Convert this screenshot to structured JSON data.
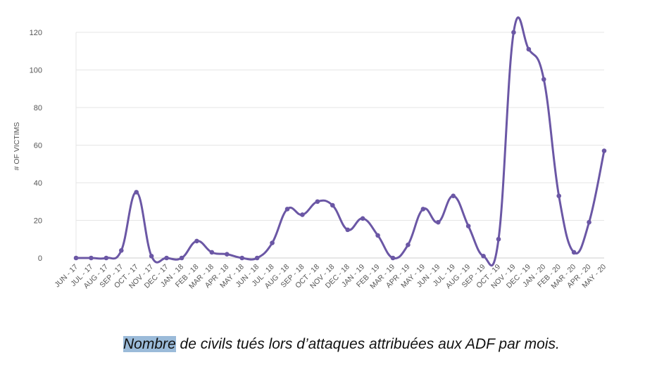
{
  "chart_data": {
    "type": "line",
    "ylabel": "# OF VICTIMS",
    "xlabel": "",
    "ylim": [
      0,
      120
    ],
    "yticks": [
      0,
      20,
      40,
      60,
      80,
      100,
      120
    ],
    "grid": true,
    "legend": "none",
    "line_color": "#6b57a5",
    "categories": [
      "JUN - 17",
      "JUL - 17",
      "AUG - 17",
      "SEP - 17",
      "OCT - 17",
      "NOV - 17",
      "DEC - 17",
      "JAN - 18",
      "FEB - 18",
      "MAR - 18",
      "APR - 18",
      "MAY - 18",
      "JUN - 18",
      "JUL - 18",
      "AUG - 18",
      "SEP - 18",
      "OCT - 18",
      "NOV - 18",
      "DEC - 18",
      "JAN - 19",
      "FEB - 19",
      "MAR - 19",
      "APR - 19",
      "MAY - 19",
      "JUN - 19",
      "JUL - 19",
      "AUG - 19",
      "SEP - 19",
      "OCT - 19",
      "NOV - 19",
      "DEC - 19",
      "JAN - 20",
      "FEB - 20",
      "MAR - 20",
      "APR - 20",
      "MAY - 20"
    ],
    "values": [
      0,
      0,
      0,
      4,
      35,
      1,
      0,
      0,
      9,
      3,
      2,
      0,
      0,
      8,
      26,
      23,
      30,
      28,
      15,
      21,
      12,
      0,
      7,
      26,
      19,
      33,
      17,
      1,
      10,
      120,
      111,
      95,
      33,
      3,
      19,
      57
    ]
  },
  "caption": {
    "highlighted": "Nombre",
    "rest": " de civils tués lors d’attaques attribuées aux ADF par mois."
  }
}
